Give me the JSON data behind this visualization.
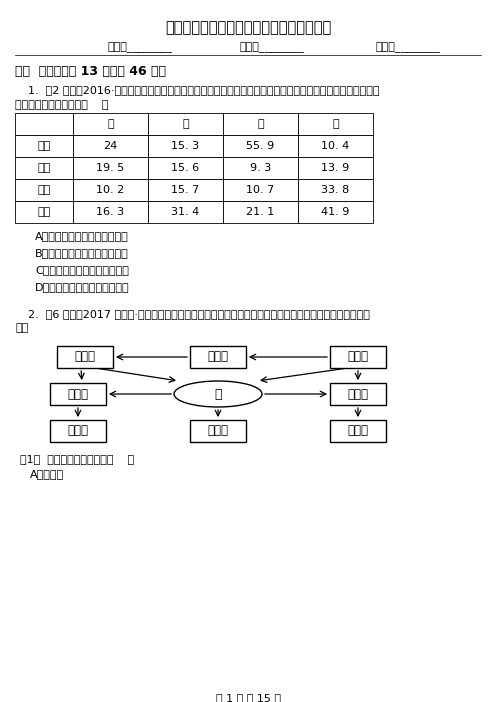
{
  "title": "安徽省安庆市高一下学期地理期末考试试卷",
  "subtitle_name": "姓名：________",
  "subtitle_class": "班级：________",
  "subtitle_score": "成绩：________",
  "section1": "一、  单选题（共 13 题；共 46 分）",
  "q1_indent": "1.  （2 分）（2016·陕西模拟）下表是中国、英国、印度、俄罗斯四个国家土地利用类型的比重，表中甲、乙、",
  "q1_text2": "丙、丁四个国家分别是（    ）",
  "table_headers": [
    "",
    "甲",
    "乙",
    "丙",
    "丁"
  ],
  "table_rows": [
    [
      "耕地",
      "24",
      "15. 3",
      "55. 9",
      "10. 4"
    ],
    [
      "林地",
      "19. 5",
      "15. 6",
      "9. 3",
      "13. 9"
    ],
    [
      "草地",
      "10. 2",
      "15. 7",
      "10. 7",
      "33. 8"
    ],
    [
      "其他",
      "16. 3",
      "31. 4",
      "21. 1",
      "41. 9"
    ]
  ],
  "q1_options": [
    "A．中国、印度、英国、俄罗斯",
    "B．俄罗斯、英国、中国、印度",
    "C．英国、俄罗斯、印度、中国",
    "D．印度、中国、俄罗斯、英国"
  ],
  "q2_text": "2.  （6 分）（2017 高一下·唐山期末）下图为我国某企业集团生态产业园区的生产联系图，读图完成下列各",
  "q2_text2": "题。",
  "q2_sub1": "（1）  图中甲企业最可能是（    ）",
  "q2_sub1_optA": "A．服装厂",
  "page_footer": "第 1 页 共 15 页",
  "bg_color": "#ffffff",
  "text_color": "#000000",
  "title_fontsize": 10.5,
  "body_fontsize": 8,
  "small_fontsize": 8,
  "section_fontsize": 9
}
